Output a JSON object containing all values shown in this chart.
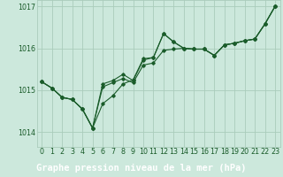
{
  "title": "Graphe pression niveau de la mer (hPa)",
  "background_color": "#cce8dc",
  "plot_bg_color": "#cce8dc",
  "label_bg_color": "#4a7a5a",
  "grid_color": "#aaccbb",
  "line_color": "#1a5c2a",
  "marker_color": "#1a5c2a",
  "x_values": [
    0,
    1,
    2,
    3,
    4,
    5,
    6,
    7,
    8,
    9,
    10,
    11,
    12,
    13,
    14,
    15,
    16,
    17,
    18,
    19,
    20,
    21,
    22,
    23
  ],
  "y_main": [
    1015.2,
    1015.05,
    1014.83,
    1014.78,
    1014.55,
    1014.1,
    1014.68,
    1014.87,
    1015.15,
    1015.25,
    1015.75,
    1015.78,
    1016.35,
    1016.15,
    1016.0,
    1015.98,
    1015.98,
    1015.83,
    1016.08,
    1016.12,
    1016.18,
    1016.22,
    1016.58,
    1017.0
  ],
  "y_line2": [
    1015.2,
    1015.05,
    1014.83,
    1014.78,
    1014.55,
    1014.1,
    1015.08,
    1015.18,
    1015.28,
    1015.18,
    1015.6,
    1015.65,
    1015.95,
    1015.98,
    1016.0,
    1015.98,
    1015.98,
    1015.83,
    1016.08,
    1016.12,
    1016.18,
    1016.22,
    1016.58,
    1017.0
  ],
  "y_line3": [
    1015.2,
    1015.05,
    1014.83,
    1014.78,
    1014.55,
    1014.1,
    1015.15,
    1015.23,
    1015.38,
    1015.23,
    1015.72,
    1015.78,
    1016.35,
    1016.15,
    1016.0,
    1015.98,
    1015.98,
    1015.83,
    1016.08,
    1016.12,
    1016.18,
    1016.22,
    1016.58,
    1017.0
  ],
  "ylim": [
    1013.65,
    1017.15
  ],
  "xlim": [
    -0.5,
    23.5
  ],
  "yticks": [
    1014,
    1015,
    1016,
    1017
  ],
  "ytick_labels": [
    "1014",
    "1015",
    "1016",
    "1017"
  ],
  "xtick_labels": [
    "0",
    "1",
    "2",
    "3",
    "4",
    "5",
    "6",
    "7",
    "8",
    "9",
    "10",
    "11",
    "12",
    "13",
    "14",
    "15",
    "16",
    "17",
    "18",
    "19",
    "20",
    "21",
    "22",
    "23"
  ],
  "title_fontsize": 7.5,
  "tick_fontsize": 5.8,
  "title_color": "#ffffff"
}
